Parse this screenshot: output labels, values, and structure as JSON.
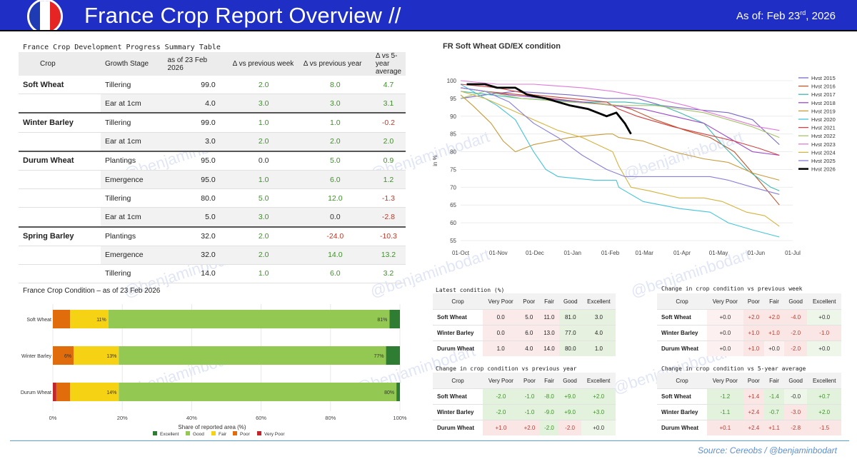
{
  "header": {
    "title": "France Crop Report Overview //",
    "asof_prefix": "As of: Feb 23",
    "asof_sup": "rd",
    "asof_suffix": ", 2026",
    "flag_colors": [
      "#1f3bb3",
      "#ffffff",
      "#e52424"
    ]
  },
  "watermark": "@benjaminbodart",
  "progress_table": {
    "title": "France Crop Development Progress Summary Table",
    "columns": [
      "Crop",
      "Growth Stage",
      "as of 23 Feb 2026",
      "Δ vs previous week",
      "Δ vs previous year",
      "Δ vs 5-year average"
    ],
    "groups": [
      {
        "crop": "Soft Wheat",
        "rows": [
          {
            "stage": "Tillering",
            "value": "99.0",
            "wk": "2.0",
            "yr": "8.0",
            "avg": "4.7"
          },
          {
            "stage": "Ear at 1cm",
            "value": "4.0",
            "wk": "3.0",
            "yr": "3.0",
            "avg": "3.1"
          }
        ]
      },
      {
        "crop": "Winter Barley",
        "rows": [
          {
            "stage": "Tillering",
            "value": "99.0",
            "wk": "1.0",
            "yr": "1.0",
            "avg": "-0.2"
          },
          {
            "stage": "Ear at 1cm",
            "value": "3.0",
            "wk": "2.0",
            "yr": "2.0",
            "avg": "2.0"
          }
        ]
      },
      {
        "crop": "Durum Wheat",
        "rows": [
          {
            "stage": "Plantings",
            "value": "95.0",
            "wk": "0.0",
            "yr": "5.0",
            "avg": "0.9"
          },
          {
            "stage": "Emergence",
            "value": "95.0",
            "wk": "1.0",
            "yr": "6.0",
            "avg": "1.2"
          },
          {
            "stage": "Tillering",
            "value": "80.0",
            "wk": "5.0",
            "yr": "12.0",
            "avg": "-1.3"
          },
          {
            "stage": "Ear at 1cm",
            "value": "5.0",
            "wk": "3.0",
            "yr": "0.0",
            "avg": "-2.8"
          }
        ]
      },
      {
        "crop": "Spring Barley",
        "rows": [
          {
            "stage": "Plantings",
            "value": "32.0",
            "wk": "2.0",
            "yr": "-24.0",
            "avg": "-10.3"
          },
          {
            "stage": "Emergence",
            "value": "32.0",
            "wk": "2.0",
            "yr": "14.0",
            "avg": "13.2"
          },
          {
            "stage": "Tillering",
            "value": "14.0",
            "wk": "1.0",
            "yr": "6.0",
            "avg": "3.2"
          }
        ]
      }
    ]
  },
  "chart_data": [
    {
      "type": "line",
      "title": "FR Soft Wheat GD/EX condition",
      "ylabel": "in %",
      "ylim": [
        54,
        101
      ],
      "yticks": [
        55,
        60,
        65,
        70,
        75,
        80,
        85,
        90,
        95,
        100
      ],
      "xticks": [
        "01-Oct",
        "01-Nov",
        "01-Dec",
        "01-Jan",
        "01-Feb",
        "01-Mar",
        "01-Apr",
        "01-May",
        "01-Jun",
        "01-Jul"
      ],
      "xunit": "days since 01-Oct",
      "xlim": [
        0,
        273
      ],
      "series": [
        {
          "name": "Hvst 2015",
          "color": "#7b68c8",
          "points": [
            [
              0,
              95
            ],
            [
              20,
              96
            ],
            [
              45,
              97
            ],
            [
              90,
              96
            ],
            [
              120,
              95
            ],
            [
              145,
              95
            ],
            [
              165,
              93
            ],
            [
              190,
              92
            ],
            [
              220,
              91
            ],
            [
              240,
              89
            ],
            [
              262,
              82
            ]
          ]
        },
        {
          "name": "Hvst 2016",
          "color": "#c0562c",
          "points": [
            [
              0,
              98
            ],
            [
              20,
              97
            ],
            [
              50,
              96
            ],
            [
              100,
              94
            ],
            [
              130,
              93
            ],
            [
              140,
              92
            ],
            [
              160,
              89
            ],
            [
              185,
              86
            ],
            [
              205,
              84
            ],
            [
              225,
              80
            ],
            [
              245,
              72
            ],
            [
              262,
              65
            ]
          ]
        },
        {
          "name": "Hvst 2017",
          "color": "#3fb7b0",
          "points": [
            [
              0,
              97
            ],
            [
              25,
              96
            ],
            [
              50,
              95
            ],
            [
              100,
              94
            ],
            [
              135,
              94
            ],
            [
              165,
              93
            ],
            [
              180,
              91
            ],
            [
              200,
              88
            ],
            [
              215,
              82
            ],
            [
              235,
              75
            ],
            [
              255,
              70
            ],
            [
              262,
              69
            ]
          ]
        },
        {
          "name": "Hvst 2018",
          "color": "#9b4bc9",
          "points": [
            [
              0,
              98
            ],
            [
              20,
              97
            ],
            [
              40,
              96
            ],
            [
              70,
              95
            ],
            [
              100,
              94
            ],
            [
              125,
              93
            ],
            [
              150,
              92
            ],
            [
              175,
              90
            ],
            [
              200,
              88
            ],
            [
              220,
              84
            ],
            [
              240,
              80
            ],
            [
              262,
              79
            ]
          ]
        },
        {
          "name": "Hvst 2019",
          "color": "#c99a3a",
          "points": [
            [
              0,
              96
            ],
            [
              10,
              93
            ],
            [
              25,
              88
            ],
            [
              35,
              83
            ],
            [
              45,
              80
            ],
            [
              60,
              82
            ],
            [
              90,
              84
            ],
            [
              120,
              85
            ],
            [
              125,
              85
            ],
            [
              130,
              84
            ],
            [
              150,
              83
            ],
            [
              175,
              80
            ],
            [
              200,
              78
            ],
            [
              220,
              77
            ],
            [
              240,
              74
            ],
            [
              262,
              72
            ]
          ]
        },
        {
          "name": "Hvst 2020",
          "color": "#46c4d8",
          "points": [
            [
              0,
              99
            ],
            [
              15,
              96
            ],
            [
              30,
              93
            ],
            [
              45,
              89
            ],
            [
              60,
              80
            ],
            [
              70,
              75
            ],
            [
              80,
              73
            ],
            [
              110,
              72
            ],
            [
              128,
              72
            ],
            [
              130,
              70
            ],
            [
              140,
              68
            ],
            [
              150,
              66
            ],
            [
              180,
              64
            ],
            [
              205,
              63
            ],
            [
              220,
              60
            ],
            [
              240,
              58
            ],
            [
              262,
              56
            ]
          ]
        },
        {
          "name": "Hvst 2021",
          "color": "#d04343",
          "points": [
            [
              0,
              99
            ],
            [
              30,
              98
            ],
            [
              60,
              96
            ],
            [
              90,
              95
            ],
            [
              120,
              94
            ],
            [
              130,
              92
            ],
            [
              145,
              90
            ],
            [
              175,
              87
            ],
            [
              200,
              85
            ],
            [
              225,
              83
            ],
            [
              245,
              81
            ],
            [
              262,
              79
            ]
          ]
        },
        {
          "name": "Hvst 2022",
          "color": "#a6c26a",
          "points": [
            [
              0,
              95
            ],
            [
              20,
              97
            ],
            [
              50,
              95
            ],
            [
              90,
              94
            ],
            [
              130,
              93
            ],
            [
              160,
              93
            ],
            [
              180,
              92
            ],
            [
              200,
              91
            ],
            [
              220,
              89
            ],
            [
              240,
              87
            ],
            [
              262,
              84
            ]
          ]
        },
        {
          "name": "Hvst 2023",
          "color": "#e07ad8",
          "points": [
            [
              0,
              100
            ],
            [
              30,
              99
            ],
            [
              60,
              99
            ],
            [
              100,
              98
            ],
            [
              125,
              97
            ],
            [
              140,
              96
            ],
            [
              160,
              95
            ],
            [
              185,
              93
            ],
            [
              205,
              91
            ],
            [
              225,
              89
            ],
            [
              245,
              87
            ],
            [
              262,
              86
            ]
          ]
        },
        {
          "name": "Hvst 2024",
          "color": "#d4b440",
          "points": [
            [
              0,
              97
            ],
            [
              20,
              95
            ],
            [
              40,
              92
            ],
            [
              60,
              89
            ],
            [
              80,
              86
            ],
            [
              100,
              84
            ],
            [
              125,
              80
            ],
            [
              130,
              76
            ],
            [
              140,
              70
            ],
            [
              155,
              69
            ],
            [
              180,
              67
            ],
            [
              200,
              67
            ],
            [
              215,
              66
            ],
            [
              235,
              63
            ],
            [
              250,
              62
            ],
            [
              262,
              59
            ]
          ]
        },
        {
          "name": "Hvst 2025",
          "color": "#8a7fd8",
          "points": [
            [
              0,
              98
            ],
            [
              20,
              97
            ],
            [
              40,
              94
            ],
            [
              60,
              88
            ],
            [
              80,
              84
            ],
            [
              100,
              79
            ],
            [
              120,
              75
            ],
            [
              135,
              73
            ],
            [
              160,
              73
            ],
            [
              185,
              73
            ],
            [
              205,
              73
            ],
            [
              220,
              72
            ],
            [
              240,
              70
            ],
            [
              262,
              68
            ]
          ]
        },
        {
          "name": "Hvst 2026",
          "color": "#000000",
          "points": [
            [
              5,
              99
            ],
            [
              20,
              99
            ],
            [
              30,
              98
            ],
            [
              45,
              98
            ],
            [
              55,
              96
            ],
            [
              70,
              95
            ],
            [
              90,
              93
            ],
            [
              105,
              92
            ],
            [
              120,
              90
            ],
            [
              128,
              91
            ],
            [
              135,
              88
            ],
            [
              140,
              85
            ]
          ]
        }
      ]
    },
    {
      "type": "bar",
      "orientation": "horizontal-stacked",
      "title": "France Crop Condition – as of 23 Feb 2026",
      "xlabel": "Share of reported area (%)",
      "xlim": [
        0,
        100
      ],
      "xticks": [
        "0%",
        "20%",
        "40%",
        "60%",
        "80%",
        "100%"
      ],
      "categories": [
        "Soft Wheat",
        "Winter Barley",
        "Durum Wheat"
      ],
      "series": [
        {
          "name": "Very Poor",
          "color": "#c0272d",
          "values": [
            0.0,
            0.0,
            1.0
          ],
          "labels": [
            "",
            "",
            ""
          ]
        },
        {
          "name": "Poor",
          "color": "#e06c0b",
          "values": [
            5.0,
            6.0,
            4.0
          ],
          "labels": [
            "",
            "6%",
            ""
          ]
        },
        {
          "name": "Fair",
          "color": "#f6d215",
          "values": [
            11.0,
            13.0,
            14.0
          ],
          "labels": [
            "11%",
            "13%",
            "14%"
          ]
        },
        {
          "name": "Good",
          "color": "#93c952",
          "values": [
            81.0,
            77.0,
            80.0
          ],
          "labels": [
            "81%",
            "77%",
            "80%"
          ]
        },
        {
          "name": "Excellent",
          "color": "#2e7d32",
          "values": [
            3.0,
            4.0,
            1.0
          ],
          "labels": [
            "",
            "",
            ""
          ]
        }
      ],
      "legend_order": [
        "Excellent",
        "Good",
        "Fair",
        "Poor",
        "Very Poor"
      ],
      "legend_position": "bottom"
    }
  ],
  "condition_tables": [
    {
      "title": "Latest condition (%)",
      "columns": [
        "Crop",
        "Very Poor",
        "Poor",
        "Fair",
        "Good",
        "Excellent"
      ],
      "rows": [
        {
          "crop": "Soft Wheat",
          "vals": [
            "0.0",
            "5.0",
            "11.0",
            "81.0",
            "3.0"
          ]
        },
        {
          "crop": "Winter Barley",
          "vals": [
            "0.0",
            "6.0",
            "13.0",
            "77.0",
            "4.0"
          ]
        },
        {
          "crop": "Durum Wheat",
          "vals": [
            "1.0",
            "4.0",
            "14.0",
            "80.0",
            "1.0"
          ]
        }
      ]
    },
    {
      "title": "Change in crop condition vs previous week",
      "columns": [
        "Crop",
        "Very Poor",
        "Poor",
        "Fair",
        "Good",
        "Excellent"
      ],
      "rows": [
        {
          "crop": "Soft Wheat",
          "vals": [
            "+0.0",
            "+2.0",
            "+2.0",
            "-4.0",
            "+0.0"
          ]
        },
        {
          "crop": "Winter Barley",
          "vals": [
            "+0.0",
            "+1.0",
            "+1.0",
            "-2.0",
            "-1.0"
          ]
        },
        {
          "crop": "Durum Wheat",
          "vals": [
            "+0.0",
            "+1.0",
            "+0.0",
            "-2.0",
            "+0.0"
          ]
        }
      ]
    },
    {
      "title": "Change in crop condition vs previous year",
      "columns": [
        "Crop",
        "Very Poor",
        "Poor",
        "Fair",
        "Good",
        "Excellent"
      ],
      "rows": [
        {
          "crop": "Soft Wheat",
          "vals": [
            "-2.0",
            "-1.0",
            "-8.0",
            "+9.0",
            "+2.0"
          ]
        },
        {
          "crop": "Winter Barley",
          "vals": [
            "-2.0",
            "-1.0",
            "-9.0",
            "+9.0",
            "+3.0"
          ]
        },
        {
          "crop": "Durum Wheat",
          "vals": [
            "+1.0",
            "+2.0",
            "-2.0",
            "-2.0",
            "+0.0"
          ]
        }
      ]
    },
    {
      "title": "Change in crop condition vs 5-year average",
      "columns": [
        "Crop",
        "Very Poor",
        "Poor",
        "Fair",
        "Good",
        "Excellent"
      ],
      "rows": [
        {
          "crop": "Soft Wheat",
          "vals": [
            "-1.2",
            "+1.4",
            "-1.4",
            "-0.0",
            "+0.7"
          ]
        },
        {
          "crop": "Winter Barley",
          "vals": [
            "-1.1",
            "+2.4",
            "-0.7",
            "-3.0",
            "+2.0"
          ]
        },
        {
          "crop": "Durum Wheat",
          "vals": [
            "+0.1",
            "+2.4",
            "+1.1",
            "-2.8",
            "-1.5"
          ]
        }
      ]
    }
  ],
  "source": "Source: Cereobs / @benjaminbodart"
}
